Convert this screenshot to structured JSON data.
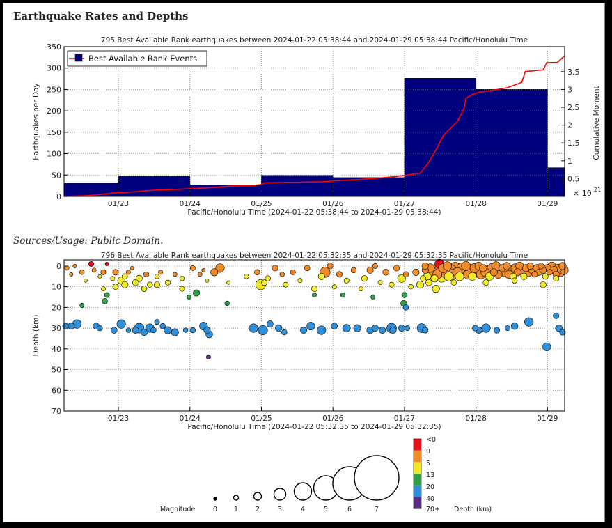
{
  "page": {
    "title": "Earthquake Rates and Depths",
    "sources": "Sources/Usage: Public Domain."
  },
  "chart_data": [
    {
      "type": "bar",
      "title": "795 Best Available Rank earthquakes between 2024-01-22 05:38:44 and 2024-01-29 05:38:44 Pacific/Honolulu Time",
      "xlabel": "Pacific/Honolulu Time (2024-01-22 05:38:44 to 2024-01-29 05:38:44)",
      "ylabel": "Earthquakes per Day",
      "y2label": "Cumulative Moment",
      "y2_multiplier": "× 10",
      "y2_exponent": "21",
      "x_range_days": [
        0,
        7
      ],
      "x_ticks": [
        {
          "label": "01/23",
          "day": 0.76
        },
        {
          "label": "01/24",
          "day": 1.76
        },
        {
          "label": "01/25",
          "day": 2.76
        },
        {
          "label": "01/26",
          "day": 3.76
        },
        {
          "label": "01/27",
          "day": 4.76
        },
        {
          "label": "01/28",
          "day": 5.76
        },
        {
          "label": "01/29",
          "day": 6.76
        }
      ],
      "ylim": [
        0,
        350
      ],
      "y_ticks": [
        "0",
        "50",
        "100",
        "150",
        "200",
        "250",
        "300",
        "350"
      ],
      "y2lim": [
        0,
        4.2
      ],
      "y2_ticks": [
        "0.5",
        "1",
        "1.5",
        "2",
        "2.5",
        "3",
        "3.5"
      ],
      "grid": true,
      "legend": {
        "position": "top-left",
        "entries": [
          "Best Available Rank Events"
        ]
      },
      "colors": {
        "bar": "#00007f",
        "line": "#ff0000"
      },
      "bars": [
        {
          "start": 0,
          "end": 0.76,
          "value": 32
        },
        {
          "start": 0.76,
          "end": 1.76,
          "value": 48
        },
        {
          "start": 1.76,
          "end": 2.76,
          "value": 27
        },
        {
          "start": 2.76,
          "end": 3.76,
          "value": 49
        },
        {
          "start": 3.76,
          "end": 4.76,
          "value": 44
        },
        {
          "start": 4.76,
          "end": 5.76,
          "value": 276
        },
        {
          "start": 5.76,
          "end": 6.76,
          "value": 250
        },
        {
          "start": 6.76,
          "end": 7.0,
          "value": 67
        }
      ],
      "cumulative_moment": [
        [
          0,
          0.0
        ],
        [
          0.3,
          0.02
        ],
        [
          0.5,
          0.05
        ],
        [
          0.7,
          0.1
        ],
        [
          1.0,
          0.13
        ],
        [
          1.1,
          0.15
        ],
        [
          1.3,
          0.18
        ],
        [
          1.6,
          0.2
        ],
        [
          1.8,
          0.22
        ],
        [
          2.1,
          0.25
        ],
        [
          2.3,
          0.29
        ],
        [
          2.6,
          0.3
        ],
        [
          2.75,
          0.33
        ],
        [
          2.8,
          0.38
        ],
        [
          3.0,
          0.39
        ],
        [
          3.3,
          0.4
        ],
        [
          3.6,
          0.41
        ],
        [
          3.8,
          0.44
        ],
        [
          4.1,
          0.47
        ],
        [
          4.3,
          0.5
        ],
        [
          4.6,
          0.55
        ],
        [
          4.8,
          0.6
        ],
        [
          4.98,
          0.65
        ],
        [
          5.08,
          0.9
        ],
        [
          5.2,
          1.3
        ],
        [
          5.25,
          1.5
        ],
        [
          5.3,
          1.7
        ],
        [
          5.4,
          1.9
        ],
        [
          5.5,
          2.1
        ],
        [
          5.6,
          2.5
        ],
        [
          5.62,
          2.75
        ],
        [
          5.7,
          2.85
        ],
        [
          5.8,
          2.92
        ],
        [
          6.0,
          2.98
        ],
        [
          6.2,
          3.05
        ],
        [
          6.4,
          3.2
        ],
        [
          6.45,
          3.5
        ],
        [
          6.7,
          3.55
        ],
        [
          6.75,
          3.75
        ],
        [
          6.9,
          3.76
        ],
        [
          7.0,
          3.95
        ]
      ]
    },
    {
      "type": "scatter",
      "title": "796 Best Available Rank earthquakes between 2024-01-22 05:32:35 and 2024-01-29 05:32:35 Pacific/Honolulu Time",
      "xlabel": "Pacific/Honolulu Time (2024-01-22 05:32:35 to 2024-01-29 05:32:35)",
      "ylabel": "Depth (km)",
      "x_range_days": [
        0,
        7
      ],
      "x_ticks": [
        {
          "label": "01/23",
          "day": 0.76
        },
        {
          "label": "01/24",
          "day": 1.76
        },
        {
          "label": "01/25",
          "day": 2.76
        },
        {
          "label": "01/26",
          "day": 3.76
        },
        {
          "label": "01/27",
          "day": 4.76
        },
        {
          "label": "01/28",
          "day": 5.76
        },
        {
          "label": "01/29",
          "day": 6.76
        }
      ],
      "ylim": [
        -3,
        70
      ],
      "y_reversed": true,
      "y_ticks": [
        "0",
        "10",
        "20",
        "30",
        "40",
        "50",
        "60",
        "70"
      ],
      "grid": true,
      "points": [
        [
          0.04,
          1,
          1.2
        ],
        [
          0.1,
          4,
          1
        ],
        [
          0.15,
          0,
          1
        ],
        [
          0.25,
          3,
          1.3
        ],
        [
          0.3,
          7,
          1
        ],
        [
          0.38,
          -1,
          1.4
        ],
        [
          0.42,
          2,
          1.2
        ],
        [
          0.5,
          5,
          1
        ],
        [
          0.55,
          3,
          1.4
        ],
        [
          0.6,
          -1,
          1
        ],
        [
          0.68,
          6,
          1.2
        ],
        [
          0.72,
          3,
          1.6
        ],
        [
          0.8,
          7,
          2
        ],
        [
          0.85,
          5,
          1.5
        ],
        [
          0.9,
          3,
          1.2
        ],
        [
          0.95,
          1,
          1
        ],
        [
          1.05,
          6,
          1.8
        ],
        [
          1.15,
          4,
          1.4
        ],
        [
          1.2,
          9,
          1.5
        ],
        [
          1.3,
          5,
          1.3
        ],
        [
          1.35,
          3,
          1.2
        ],
        [
          1.45,
          8,
          1.4
        ],
        [
          1.55,
          4,
          1.2
        ],
        [
          1.65,
          6,
          1.3
        ],
        [
          1.8,
          1,
          1.4
        ],
        [
          1.9,
          4,
          1.2
        ],
        [
          1.95,
          2,
          1
        ],
        [
          2.0,
          7,
          1
        ],
        [
          2.1,
          3,
          2
        ],
        [
          2.18,
          1,
          2.4
        ],
        [
          2.3,
          8,
          1
        ],
        [
          0.55,
          11,
          1.2
        ],
        [
          0.72,
          10,
          1.5
        ],
        [
          0.85,
          9,
          1.8
        ],
        [
          1.0,
          8,
          1.7
        ],
        [
          1.12,
          11,
          1.5
        ],
        [
          1.3,
          9,
          1.6
        ],
        [
          1.65,
          11,
          1.4
        ],
        [
          1.85,
          13,
          1.8
        ],
        [
          2.55,
          5,
          1.3
        ],
        [
          2.7,
          3,
          1.5
        ],
        [
          2.75,
          9,
          2.8
        ],
        [
          2.85,
          6,
          1.5
        ],
        [
          2.95,
          1,
          1.6
        ],
        [
          3.05,
          4,
          1.3
        ],
        [
          3.1,
          9,
          1.4
        ],
        [
          3.2,
          3,
          1.4
        ],
        [
          3.3,
          7,
          1.2
        ],
        [
          3.4,
          1,
          1.5
        ],
        [
          3.5,
          11,
          1.6
        ],
        [
          3.6,
          5,
          1.8
        ],
        [
          3.65,
          3,
          2.8
        ],
        [
          3.72,
          0,
          1.6
        ],
        [
          3.78,
          10,
          1.2
        ],
        [
          3.85,
          4,
          1.6
        ],
        [
          3.95,
          7,
          1.4
        ],
        [
          4.05,
          2,
          1.5
        ],
        [
          4.15,
          11,
          1.2
        ],
        [
          4.2,
          6,
          1.6
        ],
        [
          4.28,
          2,
          1.8
        ],
        [
          4.35,
          0,
          1.4
        ],
        [
          4.42,
          8,
          1.2
        ],
        [
          4.5,
          3,
          1.7
        ],
        [
          4.58,
          9,
          1.4
        ],
        [
          4.65,
          1,
          1.6
        ],
        [
          4.72,
          6,
          2.2
        ],
        [
          4.78,
          4,
          1.5
        ],
        [
          4.85,
          10,
          1.3
        ],
        [
          4.92,
          3,
          1.8
        ],
        [
          4.98,
          9,
          2
        ],
        [
          5.02,
          6,
          1.6
        ],
        [
          5.05,
          2,
          1.8
        ],
        [
          3.9,
          14,
          1.3
        ],
        [
          4.32,
          15,
          1.2
        ],
        [
          3.5,
          14,
          1.2
        ],
        [
          0.57,
          17,
          1.5
        ],
        [
          0.6,
          14,
          1.4
        ],
        [
          0.25,
          19,
          1.2
        ],
        [
          4.75,
          18,
          1.7
        ],
        [
          4.78,
          20,
          1.5
        ],
        [
          4.76,
          14,
          1.5
        ],
        [
          1.75,
          15,
          1.2
        ],
        [
          2.28,
          18,
          1.3
        ],
        [
          0.02,
          29,
          1.6
        ],
        [
          0.1,
          29,
          1.8
        ],
        [
          0.18,
          28,
          2.4
        ],
        [
          0.45,
          29,
          1.7
        ],
        [
          0.5,
          30,
          1.5
        ],
        [
          0.7,
          31,
          1.7
        ],
        [
          0.8,
          28,
          2.4
        ],
        [
          0.9,
          31,
          1.3
        ],
        [
          1.0,
          31,
          1.8
        ],
        [
          1.05,
          30,
          2.7
        ],
        [
          1.12,
          32,
          1.8
        ],
        [
          1.2,
          30,
          2.4
        ],
        [
          1.25,
          31,
          1.5
        ],
        [
          1.3,
          27,
          1.4
        ],
        [
          1.38,
          29,
          1.5
        ],
        [
          1.45,
          31,
          2
        ],
        [
          1.55,
          32,
          2
        ],
        [
          1.7,
          31,
          1.3
        ],
        [
          1.8,
          31,
          1.5
        ],
        [
          1.95,
          29,
          2.2
        ],
        [
          2.0,
          31,
          1.8
        ],
        [
          2.03,
          33,
          1.9
        ],
        [
          2.02,
          44,
          1.2
        ],
        [
          2.65,
          30,
          2.4
        ],
        [
          2.78,
          31,
          2.6
        ],
        [
          2.88,
          28,
          1.8
        ],
        [
          3.0,
          30,
          1.9
        ],
        [
          3.08,
          32,
          1.5
        ],
        [
          3.35,
          31,
          1.8
        ],
        [
          3.45,
          29,
          2.2
        ],
        [
          3.6,
          31,
          2.4
        ],
        [
          3.78,
          29,
          1.7
        ],
        [
          3.95,
          30,
          2.1
        ],
        [
          4.1,
          30,
          2
        ],
        [
          4.28,
          31,
          1.9
        ],
        [
          4.35,
          30,
          1.8
        ],
        [
          4.45,
          31,
          1.8
        ],
        [
          4.58,
          30,
          2.7
        ],
        [
          4.6,
          31,
          1.8
        ],
        [
          4.72,
          30,
          1.8
        ],
        [
          4.8,
          30,
          1.4
        ],
        [
          5.0,
          30,
          2.5
        ],
        [
          5.05,
          31,
          1.6
        ],
        [
          5.75,
          30,
          1.6
        ],
        [
          5.8,
          31,
          1.8
        ],
        [
          5.9,
          30,
          2.4
        ],
        [
          6.05,
          31,
          1.6
        ],
        [
          6.2,
          30,
          1.4
        ],
        [
          6.3,
          29,
          1.9
        ],
        [
          6.5,
          27,
          2.4
        ],
        [
          6.75,
          39,
          2.2
        ],
        [
          6.88,
          24,
          1.6
        ],
        [
          6.92,
          30,
          1.9
        ],
        [
          6.97,
          32,
          1.6
        ],
        [
          5.05,
          0,
          1.8
        ],
        [
          5.08,
          5,
          2.1
        ],
        [
          5.12,
          1,
          2.4
        ],
        [
          5.15,
          3,
          2.8
        ],
        [
          5.18,
          6,
          2
        ],
        [
          5.2,
          2,
          3
        ],
        [
          5.22,
          4,
          2.5
        ],
        [
          5.25,
          -1,
          2.6
        ],
        [
          5.28,
          5,
          3.2
        ],
        [
          5.3,
          1,
          2.5
        ],
        [
          5.33,
          3,
          3
        ],
        [
          5.36,
          0,
          2.4
        ],
        [
          5.38,
          5,
          2.5
        ],
        [
          5.41,
          2,
          3
        ],
        [
          5.44,
          4,
          2.8
        ],
        [
          5.47,
          1,
          3.2
        ],
        [
          5.5,
          3,
          2.6
        ],
        [
          5.53,
          5,
          2.4
        ],
        [
          5.56,
          1,
          2.8
        ],
        [
          5.59,
          3,
          3
        ],
        [
          5.62,
          0,
          2.5
        ],
        [
          5.65,
          4,
          2.6
        ],
        [
          5.68,
          2,
          3.2
        ],
        [
          5.71,
          5,
          2.2
        ],
        [
          5.74,
          1,
          2.5
        ],
        [
          5.77,
          3,
          2.8
        ],
        [
          5.8,
          0,
          2.2
        ],
        [
          5.83,
          4,
          2.5
        ],
        [
          5.86,
          1,
          2
        ],
        [
          5.89,
          3,
          2.4
        ],
        [
          5.92,
          2,
          2.8
        ],
        [
          5.95,
          5,
          2.2
        ],
        [
          5.98,
          1,
          2.5
        ],
        [
          6.01,
          3,
          2
        ],
        [
          6.04,
          0,
          2.4
        ],
        [
          6.07,
          4,
          2.2
        ],
        [
          6.1,
          2,
          2.6
        ],
        [
          6.13,
          1,
          2
        ],
        [
          6.16,
          3,
          2.4
        ],
        [
          6.19,
          0,
          2
        ],
        [
          6.22,
          4,
          2.2
        ],
        [
          6.25,
          2,
          2.6
        ],
        [
          6.28,
          5,
          1.8
        ],
        [
          6.31,
          1,
          2.4
        ],
        [
          6.34,
          3,
          2
        ],
        [
          6.37,
          0,
          2.2
        ],
        [
          6.4,
          2,
          2.6
        ],
        [
          6.43,
          5,
          1.8
        ],
        [
          6.46,
          1,
          2
        ],
        [
          6.49,
          3,
          2.4
        ],
        [
          6.52,
          0,
          1.8
        ],
        [
          6.55,
          2,
          2
        ],
        [
          6.58,
          4,
          1.6
        ],
        [
          6.61,
          1,
          2
        ],
        [
          6.64,
          3,
          1.8
        ],
        [
          6.67,
          0,
          1.6
        ],
        [
          6.7,
          2,
          1.8
        ],
        [
          6.73,
          5,
          1.6
        ],
        [
          6.76,
          1,
          2
        ],
        [
          6.79,
          3,
          1.6
        ],
        [
          6.82,
          0,
          2.2
        ],
        [
          6.85,
          2,
          2
        ],
        [
          6.88,
          4,
          1.8
        ],
        [
          6.91,
          1,
          2.2
        ],
        [
          6.94,
          3,
          2.4
        ],
        [
          6.97,
          0,
          2
        ],
        [
          6.99,
          2,
          2.4
        ],
        [
          5.1,
          8,
          1.7
        ],
        [
          5.2,
          11,
          2
        ],
        [
          5.45,
          8,
          1.5
        ],
        [
          5.9,
          8,
          1.6
        ],
        [
          6.3,
          7,
          1.5
        ],
        [
          6.7,
          9,
          1.7
        ],
        [
          6.88,
          6,
          1.6
        ],
        [
          2.8,
          8,
          1.6
        ]
      ]
    }
  ],
  "legend": {
    "magnitude_label": "Magnitude",
    "magnitudes": [
      "0",
      "1",
      "2",
      "3",
      "4",
      "5",
      "6",
      "7"
    ],
    "depth_label": "Depth (km)",
    "depth_bins": [
      {
        "label": "<0",
        "color": "#e8101a"
      },
      {
        "label": "0",
        "color": "#f28c28"
      },
      {
        "label": "5",
        "color": "#f0ea2a"
      },
      {
        "label": "13",
        "color": "#2f9e44"
      },
      {
        "label": "20",
        "color": "#2f8fd8"
      },
      {
        "label": "40",
        "color": "#5b2c83"
      },
      {
        "label": "70+",
        "color": ""
      }
    ]
  }
}
